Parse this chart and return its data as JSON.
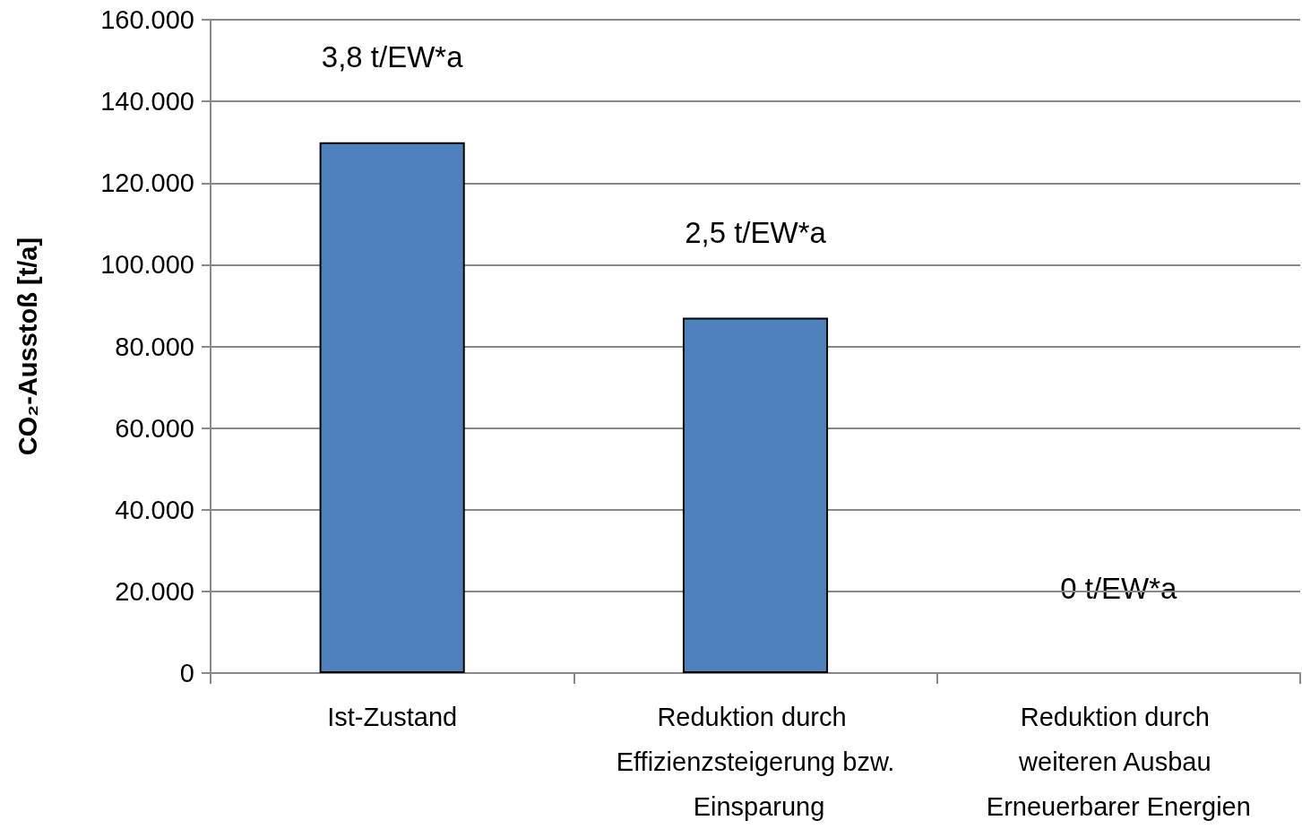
{
  "chart_data": {
    "type": "bar",
    "ylabel": "CO₂-Ausstoß [t/a]",
    "categories": [
      "Ist-Zustand",
      "Reduktion durch Effizienzsteigerung bzw. Einsparung",
      "Reduktion durch weiteren Ausbau Erneuerbarer Energien"
    ],
    "values": [
      130000,
      87000,
      0
    ],
    "color": "#4f81bd",
    "ylim": [
      0,
      160000
    ],
    "yticks": [
      {
        "value": 0,
        "label": "0"
      },
      {
        "value": 20000,
        "label": "20.000"
      },
      {
        "value": 40000,
        "label": "40.000"
      },
      {
        "value": 60000,
        "label": "60.000"
      },
      {
        "value": 80000,
        "label": "80.000"
      },
      {
        "value": 100000,
        "label": "100.000"
      },
      {
        "value": 120000,
        "label": "120.000"
      },
      {
        "value": 140000,
        "label": "140.000"
      },
      {
        "value": 160000,
        "label": "160.000"
      }
    ],
    "grid": "y",
    "annotations": [
      "3,8 t/EW*a",
      "2,5 t/EW*a",
      "0 t/EW*a"
    ]
  }
}
